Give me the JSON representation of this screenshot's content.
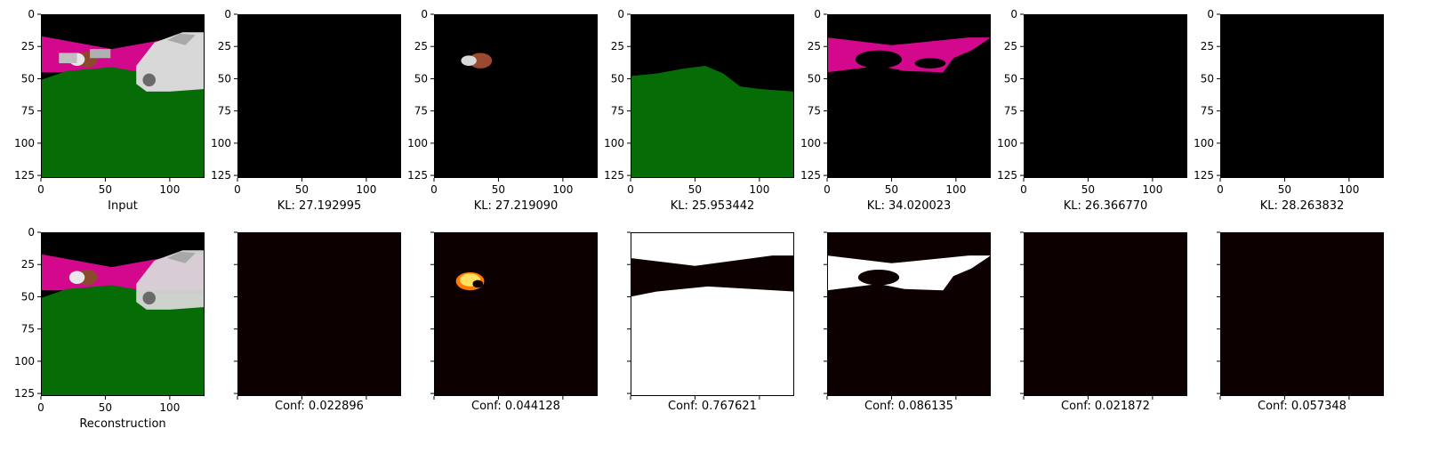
{
  "chart_data": {
    "type": "image-grid",
    "axis_ticks": [
      "0",
      "50",
      "100"
    ],
    "y_ticks": [
      "0",
      "25",
      "50",
      "75",
      "100",
      "125"
    ],
    "xlim": [
      0,
      127
    ],
    "ylim": [
      127,
      0
    ],
    "rows": [
      {
        "panels": [
          {
            "caption": "Input",
            "kind": "input",
            "show_xticklabels": true,
            "show_yticklabels": true
          },
          {
            "caption": "KL: 27.192995",
            "kind": "slot-dark",
            "show_xticklabels": true,
            "show_yticklabels": true
          },
          {
            "caption": "KL: 27.219090",
            "kind": "slot-object",
            "show_xticklabels": true,
            "show_yticklabels": true
          },
          {
            "caption": "KL: 25.953442",
            "kind": "slot-ground",
            "show_xticklabels": true,
            "show_yticklabels": true
          },
          {
            "caption": "KL: 34.020023",
            "kind": "slot-wall",
            "show_xticklabels": true,
            "show_yticklabels": true
          },
          {
            "caption": "KL: 26.366770",
            "kind": "slot-car-dim",
            "show_xticklabels": true,
            "show_yticklabels": true
          },
          {
            "caption": "KL: 28.263832",
            "kind": "slot-car",
            "show_xticklabels": true,
            "show_yticklabels": true
          }
        ]
      },
      {
        "panels": [
          {
            "caption": "Reconstruction",
            "kind": "recon",
            "show_xticklabels": true,
            "show_yticklabels": true
          },
          {
            "caption": "Conf: 0.022896",
            "kind": "mask-small",
            "show_xticklabels": false,
            "show_yticklabels": false
          },
          {
            "caption": "Conf: 0.044128",
            "kind": "mask-object",
            "show_xticklabels": false,
            "show_yticklabels": false
          },
          {
            "caption": "Conf: 0.767621",
            "kind": "mask-ground",
            "show_xticklabels": false,
            "show_yticklabels": false
          },
          {
            "caption": "Conf: 0.086135",
            "kind": "mask-wall",
            "show_xticklabels": false,
            "show_yticklabels": false
          },
          {
            "caption": "Conf: 0.021872",
            "kind": "mask-dim",
            "show_xticklabels": false,
            "show_yticklabels": false
          },
          {
            "caption": "Conf: 0.057348",
            "kind": "mask-car",
            "show_xticklabels": false,
            "show_yticklabels": false
          }
        ]
      }
    ],
    "colors": {
      "sky": "#000000",
      "wall": "#d4088c",
      "ground": "#066c06",
      "car": "#d8d8d8",
      "object": "#8c4a2c",
      "heat_dark": "#0d0000",
      "heat_red": "#d21a00",
      "heat_orange": "#ff7a00",
      "heat_yellow": "#ffe060",
      "heat_white": "#ffffff"
    }
  }
}
